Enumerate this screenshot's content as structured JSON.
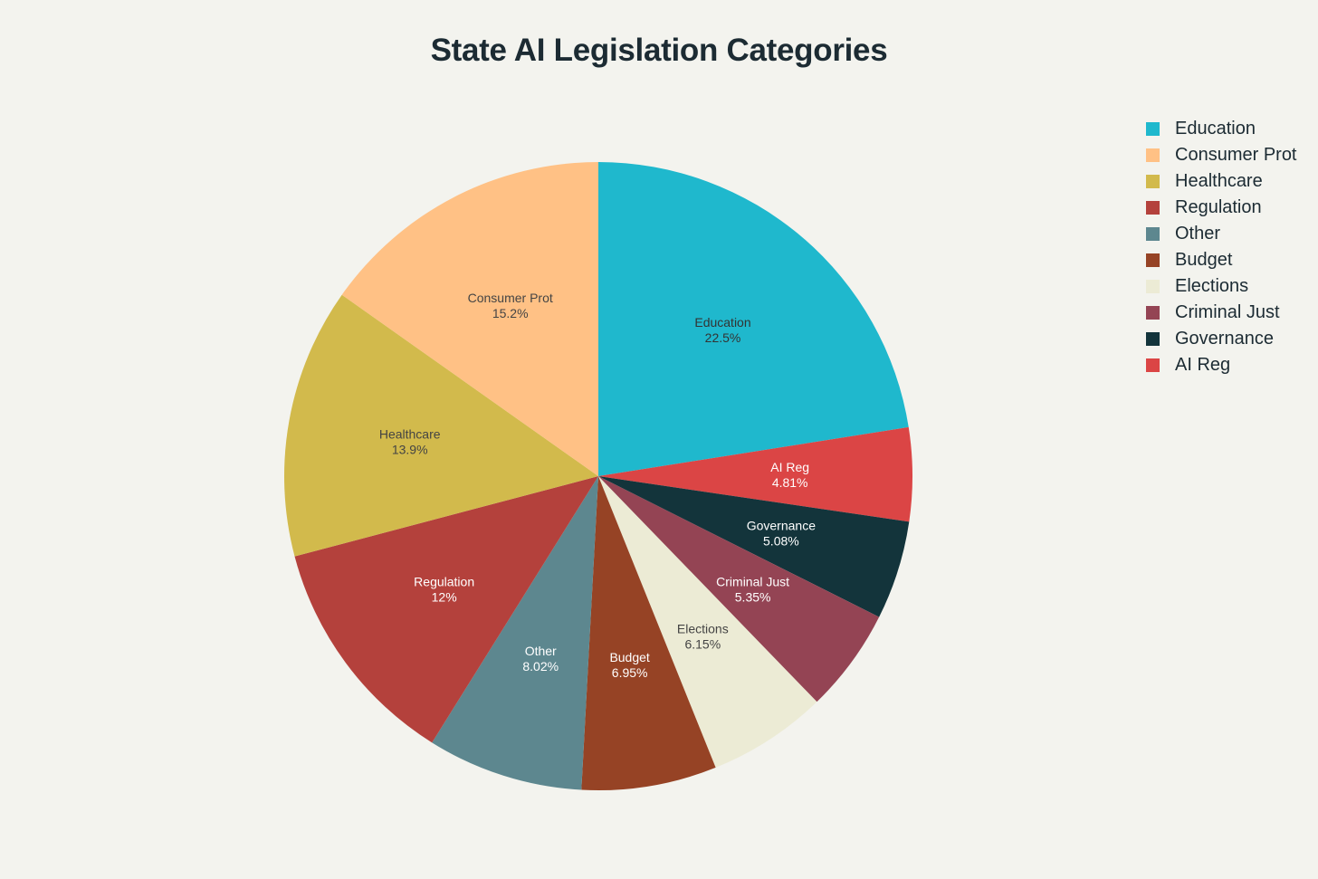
{
  "chart_data": {
    "type": "pie",
    "title": "State AI Legislation Categories",
    "slices": [
      {
        "label": "Education",
        "percent_label": "22.5%",
        "value": 22.5,
        "color": "#1fb8cd",
        "text_color": "#333333"
      },
      {
        "label": "AI Reg",
        "percent_label": "4.81%",
        "value": 4.81,
        "color": "#db4545",
        "text_color": "#ffffff"
      },
      {
        "label": "Governance",
        "percent_label": "5.08%",
        "value": 5.08,
        "color": "#13343b",
        "text_color": "#ffffff"
      },
      {
        "label": "Criminal Just",
        "percent_label": "5.35%",
        "value": 5.35,
        "color": "#944454",
        "text_color": "#ffffff"
      },
      {
        "label": "Elections",
        "percent_label": "6.15%",
        "value": 6.15,
        "color": "#ecebd5",
        "text_color": "#444444"
      },
      {
        "label": "Budget",
        "percent_label": "6.95%",
        "value": 6.95,
        "color": "#964325",
        "text_color": "#ffffff"
      },
      {
        "label": "Other",
        "percent_label": "8.02%",
        "value": 8.02,
        "color": "#5d878f",
        "text_color": "#ffffff"
      },
      {
        "label": "Regulation",
        "percent_label": "12%",
        "value": 12.0,
        "color": "#b4413c",
        "text_color": "#ffffff"
      },
      {
        "label": "Healthcare",
        "percent_label": "13.9%",
        "value": 13.9,
        "color": "#d2ba4c",
        "text_color": "#444444"
      },
      {
        "label": "Consumer Prot",
        "percent_label": "15.2%",
        "value": 15.2,
        "color": "#ffc185",
        "text_color": "#444444"
      }
    ],
    "legend": {
      "placement": "top-right",
      "entries": [
        "Education",
        "Consumer Prot",
        "Healthcare",
        "Regulation",
        "Other",
        "Budget",
        "Elections",
        "Criminal Just",
        "Governance",
        "AI Reg"
      ]
    }
  }
}
